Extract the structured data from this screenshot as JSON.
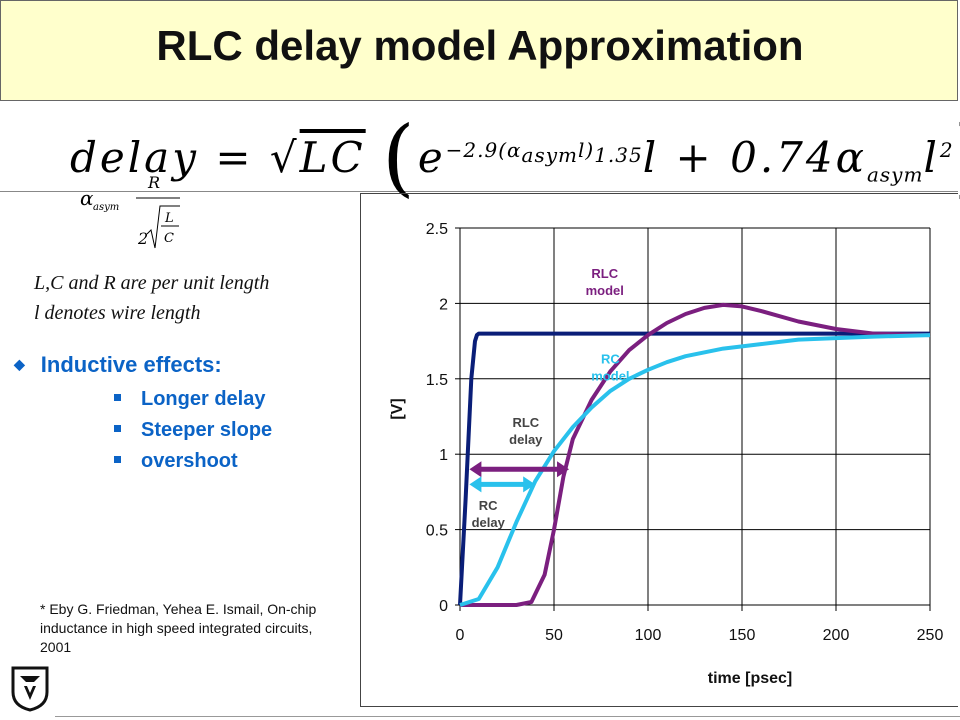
{
  "slide": {
    "title": "RLC delay model Approximation",
    "formula": {
      "lhs": "delay",
      "eq": "=",
      "sqrt_arg": "LC",
      "exp_base": "e",
      "exponent": "−2.9(α",
      "exponent_sub": "asym",
      "exponent_tail": "l)",
      "exponent_pow": "1.35",
      "term1_factor": "l",
      "plus": "+",
      "coef": "0.74α",
      "coef_sub": "asym",
      "term2": "l",
      "term2_pow": "2"
    },
    "alpha_def": {
      "symbol": "α",
      "sub": "asym",
      "glyph": "",
      "numerator": "R",
      "den_coef": "2",
      "den_L": "L",
      "den_C": "C"
    },
    "notes": [
      "L,C and R  are per unit length",
      "l  denotes wire length"
    ],
    "bullet": {
      "heading": "Inductive effects:",
      "items": [
        "Longer delay",
        "Steeper slope",
        "overshoot"
      ]
    },
    "reference": "* Eby G. Friedman, Yehea E. Ismail, On-chip inductance in high speed integrated circuits, 2001"
  },
  "chart_data": {
    "type": "line",
    "xlabel": "time [psec]",
    "ylabel": "[V]",
    "xlim": [
      0,
      250
    ],
    "ylim": [
      0,
      2.5
    ],
    "xticks": [
      0,
      50,
      100,
      150,
      200,
      250
    ],
    "yticks": [
      0,
      0.5,
      1,
      1.5,
      2,
      2.5
    ],
    "grid": true,
    "colors": {
      "input": "#0a1e78",
      "rlc": "#7b1f7f",
      "rc": "#29c1ec"
    },
    "series": [
      {
        "key": "input",
        "x": [
          0,
          3,
          6,
          8,
          9,
          10,
          20,
          100,
          250
        ],
        "y": [
          0,
          0.7,
          1.5,
          1.75,
          1.79,
          1.8,
          1.8,
          1.8,
          1.8
        ]
      },
      {
        "key": "rlc",
        "x": [
          0,
          30,
          38,
          45,
          50,
          55,
          60,
          70,
          80,
          90,
          100,
          110,
          120,
          130,
          140,
          150,
          160,
          180,
          200,
          220,
          250
        ],
        "y": [
          0,
          0,
          0.02,
          0.2,
          0.5,
          0.85,
          1.1,
          1.36,
          1.55,
          1.69,
          1.79,
          1.87,
          1.93,
          1.97,
          1.99,
          1.98,
          1.95,
          1.88,
          1.83,
          1.8,
          1.79
        ]
      },
      {
        "key": "rc",
        "x": [
          0,
          10,
          20,
          30,
          40,
          50,
          60,
          70,
          80,
          90,
          100,
          110,
          120,
          140,
          160,
          180,
          200,
          220,
          250
        ],
        "y": [
          0,
          0.04,
          0.25,
          0.55,
          0.82,
          1.02,
          1.18,
          1.31,
          1.42,
          1.5,
          1.56,
          1.61,
          1.65,
          1.7,
          1.73,
          1.76,
          1.77,
          1.78,
          1.79
        ]
      }
    ],
    "annotations": [
      {
        "key": "rlc_model",
        "lines": [
          "RLC",
          "model"
        ],
        "color": "#7b1f7f"
      },
      {
        "key": "rc_model",
        "lines": [
          "RC",
          "model"
        ],
        "color": "#29c1ec"
      },
      {
        "key": "rlc_delay",
        "lines": [
          "RLC",
          "delay"
        ],
        "color": "#444444"
      },
      {
        "key": "rc_delay",
        "lines": [
          "RC",
          "delay"
        ],
        "color": "#444444"
      }
    ],
    "arrows": [
      {
        "key": "rlc_delay_arrow",
        "from": 5,
        "to": 58,
        "y": 0.9,
        "color": "#7b1f7f"
      },
      {
        "key": "rc_delay_arrow",
        "from": 5,
        "to": 40,
        "y": 0.8,
        "color": "#29c1ec"
      }
    ]
  }
}
